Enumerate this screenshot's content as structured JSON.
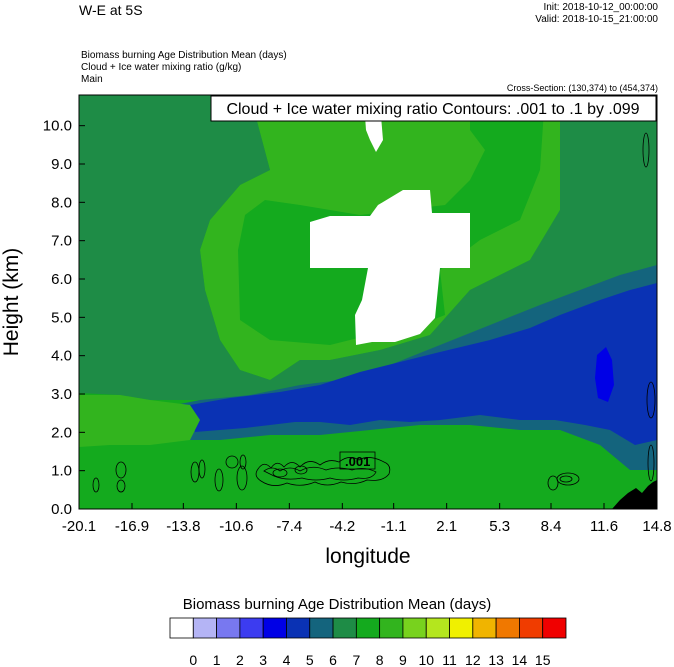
{
  "header": {
    "title": "W-E at 5S",
    "init": "Init: 2018-10-12_00:00:00",
    "valid": "Valid: 2018-10-15_21:00:00",
    "field1": "Biomass burning Age Distribution Mean    (days)",
    "field2": "Cloud + Ice water mixing ratio    (g/kg)",
    "field3": "Main",
    "cross_section": "Cross-Section: (130,374) to (454,374)"
  },
  "chart_data": {
    "type": "heatmap",
    "title": "",
    "xlabel": "longitude",
    "ylabel": "Height (km)",
    "x_ticks": [
      "-20.1",
      "-16.9",
      "-13.8",
      "-10.6",
      "-7.4",
      "-4.2",
      "-1.1",
      "2.1",
      "5.3",
      "8.4",
      "11.6",
      "14.8"
    ],
    "y_ticks": [
      "0.0",
      "1.0",
      "2.0",
      "3.0",
      "4.0",
      "5.0",
      "6.0",
      "7.0",
      "8.0",
      "9.0",
      "10.0"
    ],
    "xlim": [
      -20.1,
      14.8
    ],
    "ylim": [
      0,
      10.8
    ],
    "contour_title": "Cloud + Ice water mixing ratio Contours: .001 to .1 by .099",
    "contour_label": ".001",
    "colorbar": {
      "title": "Biomass burning Age Distribution Mean  (days)",
      "labels": [
        "0",
        "1",
        "2",
        "3",
        "4",
        "5",
        "6",
        "7",
        "8",
        "9",
        "10",
        "11",
        "12",
        "13",
        "14",
        "15"
      ],
      "colors": [
        "#ffffff",
        "#b4b4f5",
        "#7878f0",
        "#3c3cf0",
        "#0000e6",
        "#0a32b4",
        "#14647d",
        "#1e8c46",
        "#14aa1e",
        "#32b41e",
        "#78d21e",
        "#b4e61e",
        "#f0f000",
        "#f0b400",
        "#f07800",
        "#f03c00",
        "#f00000"
      ]
    },
    "regions": [
      {
        "name": "background",
        "value": 8.5
      },
      {
        "name": "upper-lighter-green",
        "value": 9.5
      },
      {
        "name": "mid-dark-green",
        "value": 7.5
      },
      {
        "name": "green-teal",
        "value": 6.5
      },
      {
        "name": "blue-teal-layer",
        "value": 5.5
      },
      {
        "name": "blue-core",
        "value": 4.5
      },
      {
        "name": "white-cloud",
        "value": 0
      },
      {
        "name": "white-top",
        "value": 0
      },
      {
        "name": "low-level-light",
        "value": 9.5
      },
      {
        "name": "terrain",
        "value": null
      }
    ]
  }
}
